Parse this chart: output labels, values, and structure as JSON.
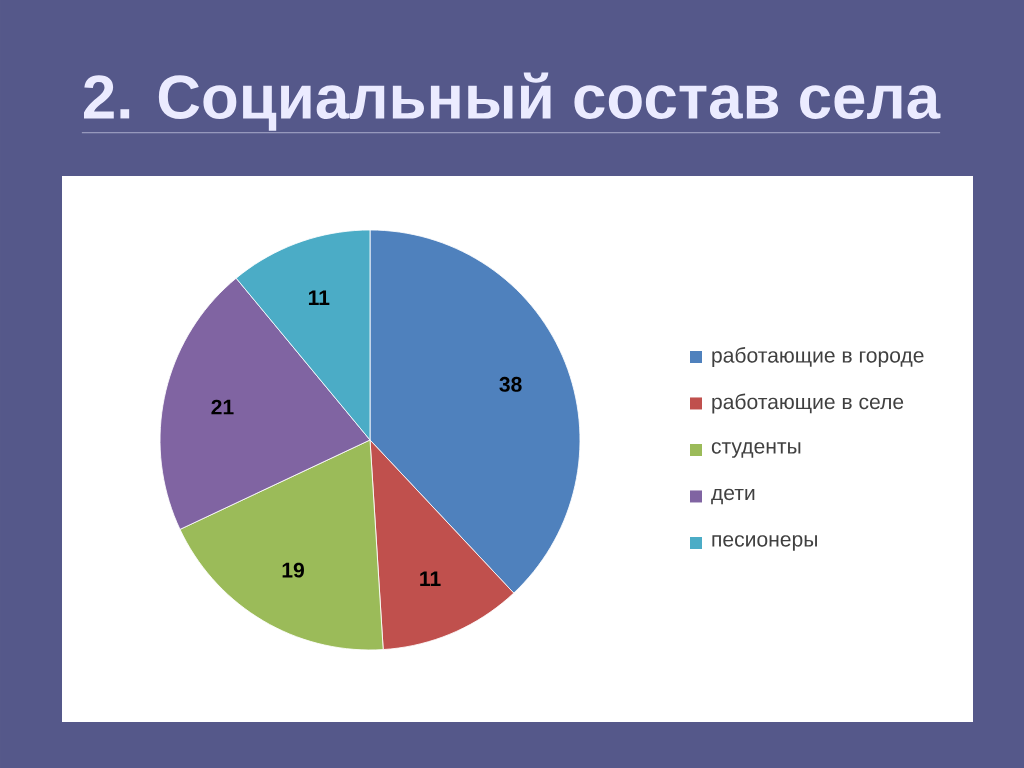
{
  "chart_data": {
    "type": "pie",
    "title": "2. Социальный состав села",
    "categories": [
      "работающие в городе",
      "работающие в селе",
      "студенты",
      "дети",
      "песионеры"
    ],
    "values": [
      38,
      11,
      19,
      21,
      11
    ],
    "colors": [
      "#4f81bd",
      "#c0504d",
      "#9bbb59",
      "#8064a2",
      "#4bacc6"
    ],
    "data_labels": true,
    "legend": "right"
  }
}
